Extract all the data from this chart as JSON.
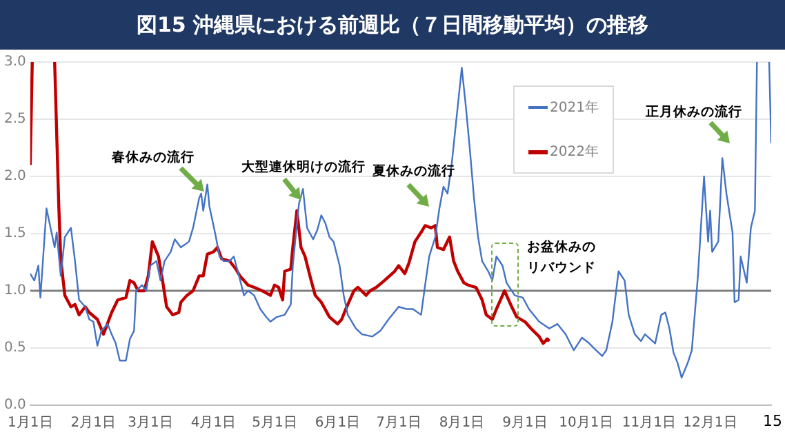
{
  "chart_data": {
    "type": "line",
    "title": "図15 沖縄県における前週比（７日間移動平均）の推移",
    "series": [
      {
        "name": "2021年",
        "color": "#4472c4",
        "x": [
          "--01-01",
          "--01-03",
          "--01-05",
          "--01-06",
          "--01-09",
          "--01-11",
          "--01-13",
          "--01-14",
          "--01-16",
          "--01-18",
          "--01-21",
          "--01-23",
          "--01-25",
          "--01-28",
          "--01-30",
          "--02-01",
          "--02-03",
          "--02-05",
          "--02-08",
          "--02-10",
          "--02-12",
          "--02-14",
          "--02-17",
          "--02-19",
          "--02-21",
          "--02-22",
          "--02-25",
          "--02-27",
          "--03-01",
          "--03-04",
          "--03-06",
          "--03-08",
          "--03-11",
          "--03-13",
          "--03-16",
          "--03-20",
          "--03-22",
          "--03-25",
          "--03-26",
          "--03-27",
          "--03-29",
          "--03-30",
          "--04-02",
          "--04-04",
          "--04-06",
          "--04-09",
          "--04-11",
          "--04-13",
          "--04-16",
          "--04-18",
          "--04-21",
          "--04-24",
          "--04-27",
          "--04-29",
          "--05-02",
          "--05-06",
          "--05-09",
          "--05-10",
          "--05-13",
          "--05-15",
          "--05-17",
          "--05-20",
          "--05-22",
          "--05-24",
          "--05-26",
          "--05-28",
          "--05-30",
          "--06-02",
          "--06-04",
          "--06-06",
          "--06-10",
          "--06-13",
          "--06-18",
          "--06-22",
          "--06-26",
          "--07-01",
          "--07-05",
          "--07-08",
          "--07-12",
          "--07-14",
          "--07-16",
          "--07-19",
          "--07-21",
          "--07-23",
          "--07-25",
          "--07-27",
          "--07-29",
          "--08-01",
          "--08-03",
          "--08-05",
          "--08-07",
          "--08-09",
          "--08-11",
          "--08-14",
          "--08-16",
          "--08-18",
          "--08-21",
          "--08-23",
          "--08-27",
          "--08-31",
          "--09-03",
          "--09-08",
          "--09-13",
          "--09-17",
          "--09-21",
          "--09-25",
          "--09-29",
          "--10-02",
          "--10-06",
          "--10-09",
          "--10-11",
          "--10-14",
          "--10-17",
          "--10-20",
          "--10-22",
          "--10-25",
          "--10-28",
          "--10-30",
          "--11-04",
          "--11-07",
          "--11-09",
          "--11-11",
          "--11-13",
          "--11-15",
          "--11-17",
          "--11-20",
          "--11-22",
          "--11-25",
          "--11-28",
          "--11-30",
          "--12-01",
          "--12-02",
          "--12-05",
          "--12-07",
          "--12-09",
          "--12-12",
          "--12-13",
          "--12-15",
          "--12-16",
          "--12-19",
          "--12-21",
          "--12-23",
          "--12-24",
          "--12-27",
          "--12-30",
          "--12-31"
        ],
        "values": [
          1.15,
          1.09,
          1.22,
          0.94,
          1.72,
          1.55,
          1.38,
          1.51,
          1.13,
          1.47,
          1.55,
          1.26,
          0.92,
          0.86,
          0.75,
          0.73,
          0.52,
          0.65,
          0.71,
          0.62,
          0.54,
          0.39,
          0.39,
          0.58,
          0.65,
          1.0,
          1.05,
          1.0,
          1.22,
          1.26,
          1.09,
          1.26,
          1.34,
          1.45,
          1.38,
          1.43,
          1.55,
          1.81,
          1.85,
          1.7,
          1.93,
          1.74,
          1.49,
          1.3,
          1.26,
          1.26,
          1.3,
          1.17,
          0.96,
          1.0,
          0.96,
          0.84,
          0.77,
          0.73,
          0.77,
          0.79,
          0.88,
          1.22,
          1.76,
          1.89,
          1.55,
          1.45,
          1.53,
          1.66,
          1.59,
          1.47,
          1.43,
          1.22,
          0.96,
          0.79,
          0.67,
          0.62,
          0.6,
          0.65,
          0.75,
          0.86,
          0.84,
          0.84,
          0.79,
          1.05,
          1.3,
          1.47,
          1.72,
          1.91,
          1.85,
          2.1,
          2.44,
          2.95,
          2.61,
          2.23,
          1.81,
          1.47,
          1.26,
          1.17,
          1.09,
          1.3,
          1.22,
          1.07,
          0.96,
          0.94,
          0.84,
          0.73,
          0.67,
          0.71,
          0.62,
          0.48,
          0.59,
          0.55,
          0.48,
          0.43,
          0.48,
          0.73,
          1.17,
          1.09,
          0.79,
          0.62,
          0.56,
          0.62,
          0.54,
          0.79,
          0.81,
          0.67,
          0.46,
          0.37,
          0.24,
          0.37,
          0.48,
          1.13,
          2.0,
          1.43,
          1.7,
          1.34,
          1.43,
          2.16,
          1.85,
          1.51,
          0.9,
          0.92,
          1.3,
          1.07,
          1.55,
          1.7,
          3.0,
          null,
          3.0,
          2.29
        ]
      },
      {
        "name": "2022年",
        "color": "#c00000",
        "x": [
          "--01-01",
          "--01-02",
          "--01-07",
          "--01-13",
          "--01-15",
          "--01-16",
          "--01-18",
          "--01-21",
          "--01-23",
          "--01-25",
          "--01-28",
          "--01-30",
          "--02-03",
          "--02-06",
          "--02-10",
          "--02-13",
          "--02-17",
          "--02-19",
          "--02-21",
          "--02-23",
          "--02-26",
          "--02-28",
          "--03-02",
          "--03-05",
          "--03-07",
          "--03-09",
          "--03-12",
          "--03-15",
          "--03-16",
          "--03-19",
          "--03-22",
          "--03-25",
          "--03-27",
          "--03-29",
          "--04-01",
          "--04-03",
          "--04-05",
          "--04-09",
          "--04-12",
          "--04-14",
          "--04-18",
          "--04-21",
          "--04-25",
          "--04-29",
          "--05-01",
          "--05-03",
          "--05-05",
          "--05-06",
          "--05-09",
          "--05-10",
          "--05-12",
          "--05-14",
          "--05-16",
          "--05-19",
          "--05-21",
          "--05-24",
          "--05-28",
          "--06-01",
          "--06-03",
          "--06-05",
          "--06-09",
          "--06-11",
          "--06-15",
          "--06-17",
          "--06-20",
          "--06-24",
          "--06-29",
          "--07-01",
          "--07-04",
          "--07-06",
          "--07-09",
          "--07-12",
          "--07-14",
          "--07-17",
          "--07-19",
          "--07-20",
          "--07-23",
          "--07-26",
          "--07-28",
          "--07-30",
          "--08-02",
          "--08-04",
          "--08-08",
          "--08-11",
          "--08-13",
          "--08-16",
          "--08-18",
          "--08-22",
          "--08-25",
          "--08-28",
          "--09-01",
          "--09-04",
          "--09-08",
          "--09-10",
          "--09-12",
          "--09-13"
        ],
        "values": [
          2.1,
          3.0,
          null,
          3.0,
          1.76,
          1.28,
          0.96,
          0.86,
          0.88,
          0.79,
          0.86,
          0.81,
          0.75,
          0.62,
          0.81,
          0.92,
          0.94,
          1.09,
          1.07,
          1.0,
          1.0,
          1.13,
          1.43,
          1.3,
          1.09,
          0.86,
          0.79,
          0.81,
          0.9,
          0.96,
          1.0,
          1.13,
          1.13,
          1.32,
          1.34,
          1.38,
          1.28,
          1.26,
          1.19,
          1.13,
          1.05,
          1.03,
          1.0,
          0.96,
          1.05,
          1.03,
          0.92,
          1.17,
          1.19,
          1.38,
          1.7,
          1.38,
          1.3,
          1.09,
          0.96,
          0.9,
          0.77,
          0.71,
          0.75,
          0.84,
          1.0,
          1.03,
          0.96,
          1.0,
          1.03,
          1.09,
          1.17,
          1.22,
          1.15,
          1.24,
          1.43,
          1.51,
          1.57,
          1.55,
          1.57,
          1.38,
          1.36,
          1.47,
          1.26,
          1.17,
          1.07,
          1.05,
          1.03,
          0.92,
          0.79,
          0.75,
          0.84,
          1.0,
          0.88,
          0.77,
          0.73,
          0.67,
          0.6,
          0.54,
          0.58,
          0.56
        ]
      }
    ],
    "xlim": [
      "--01-01",
      "--12-31"
    ],
    "xticks": [
      {
        "value": "--01-01",
        "label": "1月1日"
      },
      {
        "value": "--02-01",
        "label": "2月1日"
      },
      {
        "value": "--03-01",
        "label": "3月1日"
      },
      {
        "value": "--04-01",
        "label": "4月1日"
      },
      {
        "value": "--05-01",
        "label": "5月1日"
      },
      {
        "value": "--06-01",
        "label": "6月1日"
      },
      {
        "value": "--07-01",
        "label": "7月1日"
      },
      {
        "value": "--08-01",
        "label": "8月1日"
      },
      {
        "value": "--09-01",
        "label": "9月1日"
      },
      {
        "value": "--10-01",
        "label": "10月1日"
      },
      {
        "value": "--11-01",
        "label": "11月1日"
      },
      {
        "value": "--12-01",
        "label": "12月1日"
      }
    ],
    "ylim": [
      0,
      3.0
    ],
    "yticks": [
      {
        "value": 0,
        "label": "0.0"
      },
      0.5,
      {
        "value": 1,
        "label": "1.0"
      },
      1.5,
      {
        "value": 2,
        "label": "2.0"
      },
      2.5,
      {
        "value": 3,
        "label": "3.0"
      }
    ],
    "grid": "y",
    "legend": "top right",
    "marker": "none",
    "line_style": "solid",
    "ref_lines": [
      {
        "axis": "y",
        "value": 1.0,
        "color": "#808080"
      }
    ],
    "annotations": [
      "春休みの流行",
      "大型連休明けの流行",
      "夏休みの流行",
      "お盆休みのリバウンド",
      "正月休みの流行",
      "15"
    ]
  }
}
